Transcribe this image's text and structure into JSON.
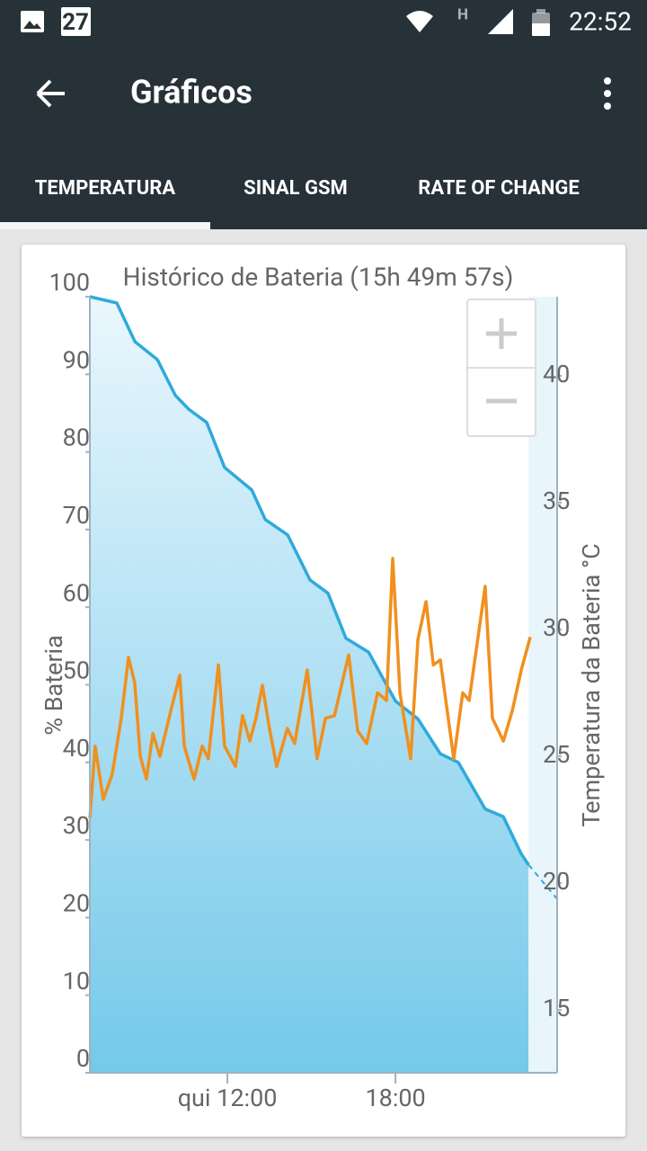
{
  "status_bar": {
    "calendar_day": "27",
    "network": "H",
    "time": "22:52"
  },
  "app_bar": {
    "title": "Gráficos"
  },
  "tabs": [
    "TEMPERATURA",
    "SINAL GSM",
    "RATE OF CHANGE"
  ],
  "chart_data": {
    "type": "line",
    "title": "Histórico de Bateria (15h 49m 57s)",
    "y_label": "% Bateria",
    "y2_label": "Temperatura da Bateria °C",
    "xlim": [
      7.09,
      23.77
    ],
    "xticks": [
      {
        "value": 12,
        "label": "qui 12:00"
      },
      {
        "value": 18,
        "label": "18:00"
      }
    ],
    "ylim": [
      0,
      100
    ],
    "yticks": [
      0,
      10,
      20,
      30,
      40,
      50,
      60,
      70,
      80,
      90,
      100
    ],
    "y2lim": [
      12.52,
      43.12
    ],
    "y2ticks": [
      15,
      20,
      25,
      30,
      35,
      40
    ],
    "series": [
      {
        "color": "#2eaadc",
        "fill": true,
        "x": [
          7.09,
          8.05,
          8.7,
          9.5,
          10.14,
          10.62,
          11.26,
          11.9,
          12.87,
          13.35,
          14.15,
          14.95,
          15.59,
          16.23,
          17.04,
          18,
          18.8,
          19.6,
          20.24,
          21.2,
          21.85,
          22.49,
          22.75
        ],
        "values": [
          100,
          99.2,
          94.2,
          91.9,
          87.3,
          85.5,
          83.8,
          78,
          75.1,
          71.3,
          69.3,
          63.5,
          61.8,
          56,
          54.2,
          47.9,
          45.6,
          41.1,
          40,
          34,
          33,
          28.2,
          26.8
        ]
      },
      {
        "color": "#2eaadc",
        "style": "dashed",
        "x": [
          22.75,
          23.77
        ],
        "values": [
          26.8,
          22.4
        ]
      },
      {
        "color": "#f0901e",
        "axis": "y2",
        "x": [
          7.09,
          7.28,
          7.57,
          7.89,
          8.21,
          8.47,
          8.69,
          8.89,
          9.11,
          9.34,
          9.59,
          9.98,
          10.3,
          10.46,
          10.81,
          11.1,
          11.32,
          11.68,
          11.9,
          12.29,
          12.54,
          12.8,
          13.02,
          13.25,
          13.5,
          13.76,
          14.14,
          14.4,
          14.85,
          15.2,
          15.5,
          15.82,
          16.33,
          16.65,
          16.97,
          17.36,
          17.68,
          17.9,
          18.16,
          18.54,
          18.8,
          19.09,
          19.35,
          19.6,
          20.08,
          20.4,
          20.63,
          21.2,
          21.46,
          21.85,
          22.17,
          22.49,
          22.81
        ],
        "values": [
          22.55,
          25.4,
          23.3,
          24.3,
          26.5,
          28.9,
          27.9,
          25,
          24.1,
          25.9,
          25,
          26.8,
          28.2,
          25.4,
          24.1,
          25.4,
          24.9,
          28.6,
          25.4,
          24.6,
          26.6,
          25.6,
          26.5,
          27.8,
          26.1,
          24.6,
          26.1,
          25.5,
          28.4,
          24.9,
          26.5,
          26.6,
          29,
          26,
          25.5,
          27.5,
          27.2,
          32.8,
          27.5,
          24.9,
          29.6,
          31.1,
          28.6,
          28.8,
          24.9,
          27.5,
          27.2,
          31.7,
          26.5,
          25.6,
          26.8,
          28.4,
          29.7
        ]
      }
    ]
  }
}
